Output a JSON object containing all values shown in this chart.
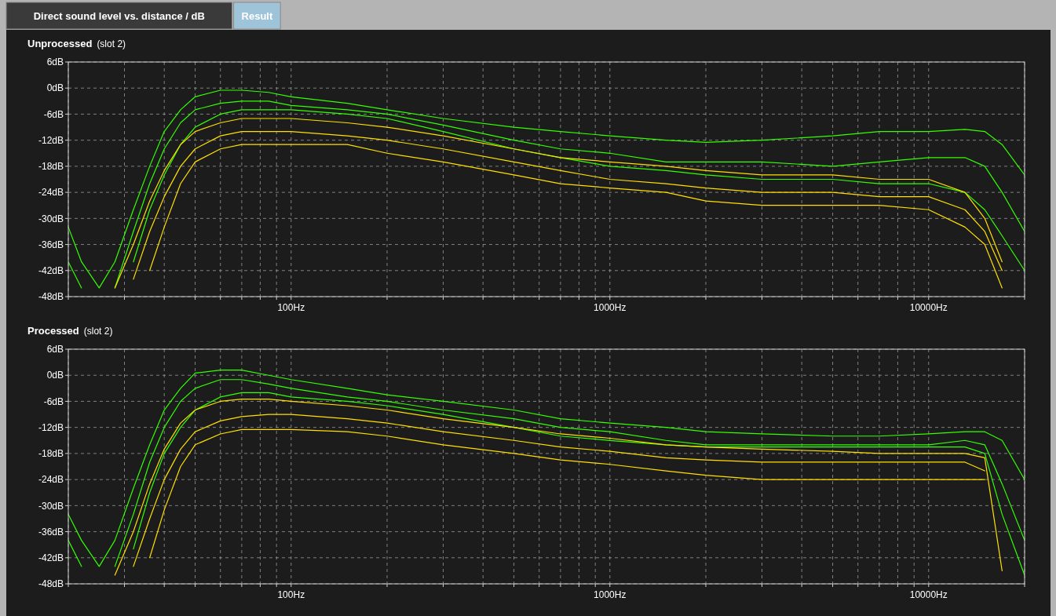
{
  "chart_data": [
    {
      "type": "line",
      "title": "Unprocessed",
      "subtitle": "(slot 2)",
      "annotations": [
        "Direct sound level vs. distance / dB",
        "Result"
      ],
      "log": "x",
      "grid": true,
      "xlim": [
        20,
        20000
      ],
      "ylim": [
        -48,
        6
      ],
      "xticks": [
        {
          "value": 20,
          "label": null
        },
        {
          "value": 30,
          "label": null
        },
        {
          "value": 40,
          "label": null
        },
        {
          "value": 50,
          "label": null
        },
        {
          "value": 60,
          "label": null
        },
        {
          "value": 70,
          "label": null
        },
        {
          "value": 80,
          "label": null
        },
        {
          "value": 90,
          "label": null
        },
        {
          "value": 100,
          "label": "100Hz"
        },
        {
          "value": 200,
          "label": null
        },
        {
          "value": 300,
          "label": null
        },
        {
          "value": 400,
          "label": null
        },
        {
          "value": 500,
          "label": null
        },
        {
          "value": 600,
          "label": null
        },
        {
          "value": 700,
          "label": null
        },
        {
          "value": 800,
          "label": null
        },
        {
          "value": 900,
          "label": null
        },
        {
          "value": 1000,
          "label": "1000Hz"
        },
        {
          "value": 2000,
          "label": null
        },
        {
          "value": 3000,
          "label": null
        },
        {
          "value": 4000,
          "label": null
        },
        {
          "value": 5000,
          "label": null
        },
        {
          "value": 6000,
          "label": null
        },
        {
          "value": 7000,
          "label": null
        },
        {
          "value": 8000,
          "label": null
        },
        {
          "value": 9000,
          "label": null
        },
        {
          "value": 10000,
          "label": "10000Hz"
        },
        {
          "value": 20000,
          "label": null
        }
      ],
      "yticks": [
        {
          "value": 6,
          "label": "6dB"
        },
        {
          "value": 0,
          "label": "0dB"
        },
        {
          "value": -6,
          "label": "-6dB"
        },
        {
          "value": -12,
          "label": "-12dB"
        },
        {
          "value": -18,
          "label": "-18dB"
        },
        {
          "value": -24,
          "label": "-24dB"
        },
        {
          "value": -30,
          "label": "-30dB"
        },
        {
          "value": -36,
          "label": "-36dB"
        },
        {
          "value": -42,
          "label": "-42dB"
        },
        {
          "value": -48,
          "label": "-48dB"
        }
      ],
      "x": [
        20,
        22,
        25,
        28,
        32,
        36,
        40,
        45,
        50,
        60,
        70,
        85,
        100,
        150,
        200,
        300,
        500,
        700,
        1000,
        1500,
        2000,
        3000,
        5000,
        7000,
        10000,
        13000,
        15000,
        17000,
        20000
      ],
      "series": [
        {
          "color": "#33ff00",
          "values": [
            -32,
            -40,
            -46,
            -40,
            -28,
            -18,
            -10,
            -5,
            -2,
            -0.5,
            -0.5,
            -1,
            -2,
            -3.5,
            -5,
            -7,
            -9,
            -10,
            -11,
            -12,
            -12.5,
            -12,
            -11,
            -10,
            -10,
            -9.5,
            -10,
            -13,
            -20
          ]
        },
        {
          "color": "#33ff00",
          "values": [
            -40,
            -46,
            null,
            -46,
            -33,
            -22,
            -14,
            -8,
            -5,
            -3.5,
            -3,
            -3,
            -4,
            -5,
            -6,
            -8.5,
            -12,
            -14,
            -15,
            -17,
            -17,
            -17,
            -18,
            -17,
            -16,
            -16,
            -18,
            -24,
            -33
          ]
        },
        {
          "color": "#33ff00",
          "values": [
            null,
            null,
            null,
            null,
            -40,
            -28,
            -20,
            -13,
            -9,
            -6,
            -5,
            -5,
            -5,
            -6,
            -7,
            -10,
            -14,
            -16,
            -18,
            -19,
            -20,
            -21,
            -21,
            -22,
            -22,
            -24,
            -28,
            -34,
            -42
          ]
        },
        {
          "color": "#ffe000",
          "values": [
            null,
            null,
            null,
            -46,
            -36,
            -26,
            -19,
            -13,
            -10,
            -8,
            -7,
            -7,
            -7,
            -8,
            -9,
            -11,
            -14,
            -16,
            -17,
            -18,
            -19,
            -20,
            -20,
            -21,
            -21,
            -24,
            -30,
            -40,
            null
          ]
        },
        {
          "color": "#ffe000",
          "values": [
            null,
            null,
            null,
            null,
            -44,
            -33,
            -25,
            -18,
            -14,
            -11,
            -10,
            -10,
            -10,
            -11,
            -12,
            -14,
            -17,
            -19,
            -21,
            -22,
            -23,
            -24,
            -24,
            -25,
            -25,
            -28,
            -33,
            -42,
            null
          ]
        },
        {
          "color": "#ffe000",
          "values": [
            null,
            null,
            null,
            null,
            null,
            -42,
            -32,
            -22,
            -17,
            -14,
            -13,
            -13,
            -13,
            -13,
            -15,
            -17,
            -20,
            -22,
            -23,
            -24,
            -26,
            -27,
            -27,
            -27,
            -28,
            -32,
            -36,
            -46,
            null
          ]
        }
      ]
    },
    {
      "type": "line",
      "title": "Processed",
      "subtitle": "(slot 2)",
      "log": "x",
      "grid": true,
      "xlim": [
        20,
        20000
      ],
      "ylim": [
        -48,
        6
      ],
      "xticks": [
        {
          "value": 20,
          "label": null
        },
        {
          "value": 30,
          "label": null
        },
        {
          "value": 40,
          "label": null
        },
        {
          "value": 50,
          "label": null
        },
        {
          "value": 60,
          "label": null
        },
        {
          "value": 70,
          "label": null
        },
        {
          "value": 80,
          "label": null
        },
        {
          "value": 90,
          "label": null
        },
        {
          "value": 100,
          "label": "100Hz"
        },
        {
          "value": 200,
          "label": null
        },
        {
          "value": 300,
          "label": null
        },
        {
          "value": 400,
          "label": null
        },
        {
          "value": 500,
          "label": null
        },
        {
          "value": 600,
          "label": null
        },
        {
          "value": 700,
          "label": null
        },
        {
          "value": 800,
          "label": null
        },
        {
          "value": 900,
          "label": null
        },
        {
          "value": 1000,
          "label": "1000Hz"
        },
        {
          "value": 2000,
          "label": null
        },
        {
          "value": 3000,
          "label": null
        },
        {
          "value": 4000,
          "label": null
        },
        {
          "value": 5000,
          "label": null
        },
        {
          "value": 6000,
          "label": null
        },
        {
          "value": 7000,
          "label": null
        },
        {
          "value": 8000,
          "label": null
        },
        {
          "value": 9000,
          "label": null
        },
        {
          "value": 10000,
          "label": "10000Hz"
        },
        {
          "value": 20000,
          "label": null
        }
      ],
      "yticks": [
        {
          "value": 6,
          "label": "6dB"
        },
        {
          "value": 0,
          "label": "0dB"
        },
        {
          "value": -6,
          "label": "-6dB"
        },
        {
          "value": -12,
          "label": "-12dB"
        },
        {
          "value": -18,
          "label": "-18dB"
        },
        {
          "value": -24,
          "label": "-24dB"
        },
        {
          "value": -30,
          "label": "-30dB"
        },
        {
          "value": -36,
          "label": "-36dB"
        },
        {
          "value": -42,
          "label": "-42dB"
        },
        {
          "value": -48,
          "label": "-48dB"
        }
      ],
      "x": [
        20,
        22,
        25,
        28,
        32,
        36,
        40,
        45,
        50,
        60,
        70,
        85,
        100,
        150,
        200,
        300,
        500,
        700,
        1000,
        1500,
        2000,
        3000,
        5000,
        7000,
        10000,
        13000,
        15000,
        17000,
        20000
      ],
      "series": [
        {
          "color": "#33ff00",
          "values": [
            -32,
            -38,
            -44,
            -38,
            -26,
            -16,
            -8,
            -3,
            0.5,
            1.2,
            1.2,
            0,
            -1,
            -3,
            -4.5,
            -6,
            -8,
            -10,
            -11,
            -12,
            -13,
            -13.5,
            -14,
            -14,
            -13.5,
            -13,
            -13,
            -15,
            -24
          ]
        },
        {
          "color": "#33ff00",
          "values": [
            -38,
            -44,
            null,
            -44,
            -32,
            -20,
            -12,
            -6,
            -3,
            -1,
            -1,
            -2,
            -3,
            -5,
            -6,
            -8,
            -10,
            -12,
            -13,
            -15,
            -16,
            -16,
            -16,
            -16,
            -16,
            -15,
            -16,
            -25,
            -38
          ]
        },
        {
          "color": "#33ff00",
          "values": [
            null,
            null,
            null,
            null,
            -40,
            -27,
            -18,
            -12,
            -8,
            -5,
            -4,
            -4,
            -5,
            -6,
            -7,
            -9,
            -12,
            -14,
            -15,
            -16,
            -16.5,
            -16.5,
            -16.5,
            -16.5,
            -16.5,
            -16.5,
            -18,
            -32,
            -46
          ]
        },
        {
          "color": "#ffe000",
          "values": [
            null,
            null,
            null,
            -46,
            -36,
            -25,
            -17,
            -11,
            -8,
            -6,
            -5.5,
            -5.5,
            -6,
            -7,
            -8,
            -10,
            -12,
            -13.5,
            -14.5,
            -16,
            -16.5,
            -17,
            -17.5,
            -18,
            -18,
            -18,
            -19,
            -45,
            null
          ]
        },
        {
          "color": "#ffe000",
          "values": [
            null,
            null,
            null,
            null,
            -44,
            -33,
            -24,
            -17,
            -13,
            -10.5,
            -9.5,
            -9,
            -9,
            -10,
            -11,
            -13,
            -15,
            -16.5,
            -17.5,
            -19,
            -19.5,
            -20,
            -20,
            -20,
            -20,
            -20,
            -22,
            null,
            null
          ]
        },
        {
          "color": "#ffe000",
          "values": [
            null,
            null,
            null,
            null,
            null,
            -42,
            -31,
            -21,
            -16,
            -13.5,
            -12.5,
            -12.5,
            -12.5,
            -13,
            -14,
            -16,
            -18,
            -19.5,
            -20.5,
            -22,
            -23,
            -24,
            -24,
            -24,
            -24,
            -24,
            -24,
            null,
            null
          ]
        }
      ]
    }
  ]
}
